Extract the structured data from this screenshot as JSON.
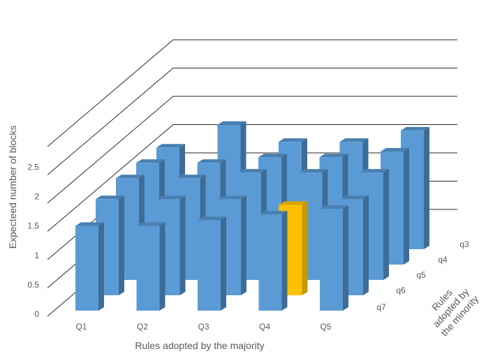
{
  "chart_data": {
    "type": "bar",
    "three_d": true,
    "categories": [
      "Q1",
      "Q2",
      "Q3",
      "Q4",
      "Q5"
    ],
    "depth_categories": [
      "q7",
      "q6",
      "q5",
      "q4",
      "q3"
    ],
    "xlabel": "Rules adopted by the majority",
    "ylabel": "Expecteed number of blocks",
    "zlabel": "Rules adopted by the minority",
    "ylim": [
      0,
      2.5
    ],
    "yticks": [
      "0",
      "0.5",
      "1",
      "1.5",
      "2",
      "2.5"
    ],
    "grid": true,
    "legend": "none",
    "series": [
      {
        "depth": "q7",
        "values": [
          1.5,
          1.5,
          1.6,
          1.7,
          1.8
        ]
      },
      {
        "depth": "q6",
        "values": [
          1.7,
          1.7,
          1.7,
          1.6,
          1.7
        ]
      },
      {
        "depth": "q5",
        "values": [
          1.8,
          1.8,
          1.9,
          1.9,
          1.9
        ]
      },
      {
        "depth": "q4",
        "values": [
          1.8,
          1.8,
          1.9,
          1.9,
          2.0
        ]
      },
      {
        "depth": "q3",
        "values": [
          1.8,
          2.2,
          1.9,
          1.9,
          2.1
        ]
      }
    ],
    "highlight": {
      "depth": "q6",
      "category": "Q4"
    },
    "colors": {
      "bar_front": "#5B9BD5",
      "bar_side": "#3D6C97",
      "bar_top": "#4A7FB0",
      "highlight_front": "#FFC000",
      "highlight_side": "#C99800",
      "highlight_top": "#D9A400",
      "grid": "#262626",
      "text": "#595959"
    }
  }
}
